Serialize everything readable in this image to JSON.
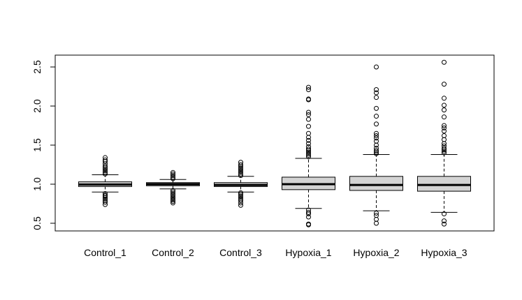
{
  "chart_data": {
    "type": "boxplot",
    "title": "",
    "xlabel": "",
    "ylabel": "",
    "ylim": [
      0.4,
      2.6
    ],
    "yticks": [
      0.5,
      1.0,
      1.5,
      2.0,
      2.5
    ],
    "ytick_labels": [
      "0.5",
      "1.0",
      "1.5",
      "2.0",
      "2.5"
    ],
    "box_fill": "#d3d3d3",
    "categories": [
      "Control_1",
      "Control_2",
      "Control_3",
      "Hypoxia_1",
      "Hypoxia_2",
      "Hypoxia_3"
    ],
    "boxes": [
      {
        "q1": 0.97,
        "median": 0.995,
        "q3": 1.03,
        "whisker_low": 0.9,
        "whisker_high": 1.12,
        "outliers": [
          0.74,
          0.77,
          0.79,
          0.81,
          0.83,
          0.85,
          0.86,
          0.88,
          1.13,
          1.15,
          1.17,
          1.19,
          1.21,
          1.23,
          1.26,
          1.29,
          1.31,
          1.34
        ]
      },
      {
        "q1": 0.98,
        "median": 1.0,
        "q3": 1.02,
        "whisker_low": 0.94,
        "whisker_high": 1.06,
        "outliers": [
          0.76,
          0.78,
          0.8,
          0.82,
          0.84,
          0.86,
          0.88,
          0.9,
          0.92,
          1.07,
          1.09,
          1.11,
          1.13,
          1.15
        ]
      },
      {
        "q1": 0.97,
        "median": 0.99,
        "q3": 1.02,
        "whisker_low": 0.9,
        "whisker_high": 1.1,
        "outliers": [
          0.73,
          0.76,
          0.79,
          0.81,
          0.83,
          0.85,
          0.87,
          0.89,
          1.11,
          1.13,
          1.15,
          1.17,
          1.19,
          1.21,
          1.23,
          1.25,
          1.28
        ]
      },
      {
        "q1": 0.93,
        "median": 1.0,
        "q3": 1.09,
        "whisker_low": 0.69,
        "whisker_high": 1.33,
        "outliers": [
          0.48,
          0.49,
          0.58,
          0.62,
          0.64,
          0.67,
          1.35,
          1.37,
          1.39,
          1.41,
          1.43,
          1.45,
          1.48,
          1.52,
          1.56,
          1.6,
          1.65,
          1.74,
          1.83,
          1.89,
          1.92,
          2.08,
          2.09,
          2.21,
          2.24
        ]
      },
      {
        "q1": 0.92,
        "median": 0.99,
        "q3": 1.1,
        "whisker_low": 0.66,
        "whisker_high": 1.38,
        "outliers": [
          0.5,
          0.55,
          0.6,
          0.63,
          1.39,
          1.41,
          1.43,
          1.46,
          1.5,
          1.55,
          1.59,
          1.62,
          1.65,
          1.77,
          1.87,
          1.97,
          2.11,
          2.17,
          2.21,
          2.5
        ]
      },
      {
        "q1": 0.91,
        "median": 0.99,
        "q3": 1.1,
        "whisker_low": 0.64,
        "whisker_high": 1.38,
        "outliers": [
          0.49,
          0.53,
          0.62,
          1.4,
          1.42,
          1.44,
          1.46,
          1.49,
          1.52,
          1.57,
          1.62,
          1.68,
          1.72,
          1.75,
          1.86,
          1.95,
          2.01,
          2.1,
          2.28,
          2.56
        ]
      }
    ]
  }
}
